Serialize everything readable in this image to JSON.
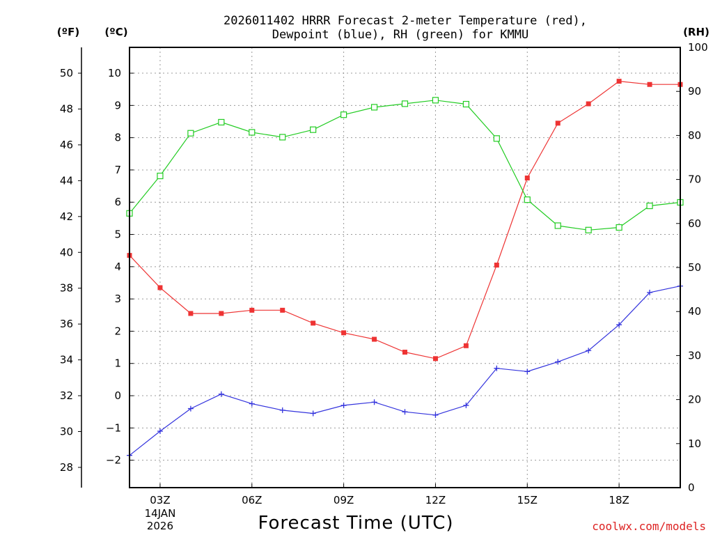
{
  "chart_data": {
    "type": "line",
    "title_line1": "2026011402 HRRR Forecast 2-meter Temperature (red),",
    "title_line2": "Dewpoint (blue), RH (green) for KMMU",
    "xlabel": "Forecast Time (UTC)",
    "credit": "coolwx.com/models",
    "units": {
      "fahrenheit": "(ºF)",
      "celsius": "(ºC)",
      "rh": "(RH)"
    },
    "x": [
      2,
      3,
      4,
      5,
      6,
      7,
      8,
      9,
      10,
      11,
      12,
      13,
      14,
      15,
      16,
      17,
      18,
      19,
      20
    ],
    "xlim": [
      2,
      20
    ],
    "x_ticks": [
      {
        "value": 3,
        "label": "03Z",
        "date": "14JAN",
        "year": "2026"
      },
      {
        "value": 6,
        "label": "06Z"
      },
      {
        "value": 9,
        "label": "09Z"
      },
      {
        "value": 12,
        "label": "12Z"
      },
      {
        "value": 15,
        "label": "15Z"
      },
      {
        "value": 18,
        "label": "18Z"
      }
    ],
    "celsius_axis": {
      "range": [
        -2.85,
        10.8
      ],
      "ticks": [
        -2,
        -1,
        0,
        1,
        2,
        3,
        4,
        5,
        6,
        7,
        8,
        9,
        10
      ],
      "tick_labels": [
        "−2",
        "−1",
        "0",
        "1",
        "2",
        "3",
        "4",
        "5",
        "6",
        "7",
        "8",
        "9",
        "10"
      ]
    },
    "fahrenheit_axis": {
      "ticks": [
        28,
        30,
        32,
        34,
        36,
        38,
        40,
        42,
        44,
        46,
        48,
        50
      ],
      "tick_labels": [
        "28",
        "30",
        "32",
        "34",
        "36",
        "38",
        "40",
        "42",
        "44",
        "46",
        "48",
        "50"
      ]
    },
    "rh_axis": {
      "range": [
        0,
        100
      ],
      "ticks": [
        0,
        10,
        20,
        30,
        40,
        50,
        60,
        70,
        80,
        90,
        100
      ],
      "tick_labels": [
        "0",
        "10",
        "20",
        "30",
        "40",
        "50",
        "60",
        "70",
        "80",
        "90",
        "100"
      ]
    },
    "series": [
      {
        "name": "Temperature",
        "units": "C",
        "color": "#ee3333",
        "marker": "filled-square",
        "values": [
          4.35,
          3.35,
          2.55,
          2.55,
          2.65,
          2.65,
          2.25,
          1.95,
          1.75,
          1.35,
          1.15,
          1.55,
          4.05,
          6.75,
          8.45,
          9.05,
          9.75,
          9.65,
          9.65
        ]
      },
      {
        "name": "Dewpoint",
        "units": "C",
        "color": "#3333dd",
        "marker": "plus",
        "values": [
          -1.85,
          -1.1,
          -0.4,
          0.05,
          -0.25,
          -0.45,
          -0.55,
          -0.3,
          -0.2,
          -0.5,
          -0.6,
          -0.3,
          0.85,
          0.75,
          1.05,
          1.4,
          2.2,
          3.2,
          3.4
        ]
      },
      {
        "name": "RH",
        "units": "%",
        "color": "#22cc22",
        "marker": "open-square",
        "values": [
          62.3,
          70.8,
          80.5,
          83.0,
          80.7,
          79.6,
          81.3,
          84.7,
          86.4,
          87.2,
          88.0,
          87.1,
          79.3,
          65.4,
          59.5,
          58.5,
          59.1,
          64.0,
          64.8
        ]
      }
    ]
  }
}
